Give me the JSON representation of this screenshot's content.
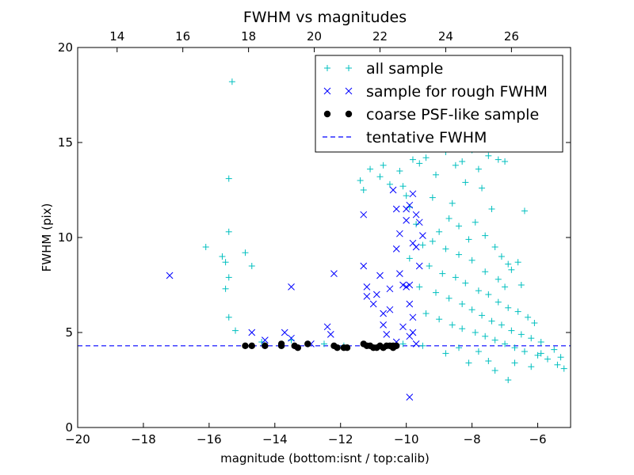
{
  "chart_data": {
    "type": "scatter",
    "title": "FWHM vs magnitudes",
    "xlabel": "magnitude (bottom:isnt / top:calib)",
    "ylabel": "FWHM (pix)",
    "xlim": [
      -20,
      -5
    ],
    "ylim": [
      0,
      20
    ],
    "xticks": [
      -20,
      -18,
      -16,
      -14,
      -12,
      -10,
      -8,
      -6
    ],
    "xtick_labels": [
      "−20",
      "−18",
      "−16",
      "−14",
      "−12",
      "−10",
      "−8",
      "−6"
    ],
    "yticks": [
      0,
      5,
      10,
      15,
      20
    ],
    "ytick_labels": [
      "0",
      "5",
      "10",
      "15",
      "20"
    ],
    "top_axis": {
      "offset": 32.8,
      "ticks": [
        14,
        16,
        18,
        20,
        22,
        24,
        26
      ],
      "tick_labels": [
        "14",
        "16",
        "18",
        "20",
        "22",
        "24",
        "26"
      ]
    },
    "grid": false,
    "legend_position": "top-right",
    "colors": {
      "all_sample": "#00bfbf",
      "rough_sample": "#0000ff",
      "psf_sample": "#000000",
      "tentative": "#0000ff"
    },
    "series": [
      {
        "name": "all sample",
        "marker": "+",
        "points": [
          [
            -15.3,
            18.2
          ],
          [
            -15.4,
            13.1
          ],
          [
            -15.4,
            10.3
          ],
          [
            -16.1,
            9.5
          ],
          [
            -15.6,
            9.0
          ],
          [
            -15.5,
            8.7
          ],
          [
            -15.4,
            7.9
          ],
          [
            -15.5,
            7.3
          ],
          [
            -15.4,
            5.8
          ],
          [
            -15.2,
            5.1
          ],
          [
            -14.9,
            9.2
          ],
          [
            -14.7,
            8.5
          ],
          [
            -14.4,
            4.5
          ],
          [
            -13.5,
            4.6
          ],
          [
            -12.5,
            4.4
          ],
          [
            -11.9,
            4.3
          ],
          [
            -11.4,
            13.0
          ],
          [
            -11.3,
            12.5
          ],
          [
            -11.1,
            13.6
          ],
          [
            -10.8,
            13.2
          ],
          [
            -10.7,
            13.8
          ],
          [
            -10.5,
            12.8
          ],
          [
            -10.2,
            13.5
          ],
          [
            -10.0,
            12.2
          ],
          [
            -9.8,
            14.1
          ],
          [
            -9.6,
            13.9
          ],
          [
            -9.4,
            14.2
          ],
          [
            -9.1,
            13.3
          ],
          [
            -8.8,
            14.5
          ],
          [
            -8.5,
            13.8
          ],
          [
            -8.3,
            14.0
          ],
          [
            -8.0,
            14.6
          ],
          [
            -7.8,
            13.6
          ],
          [
            -7.5,
            14.3
          ],
          [
            -7.2,
            14.1
          ],
          [
            -7.0,
            14.0
          ],
          [
            -8.2,
            12.9
          ],
          [
            -7.7,
            12.6
          ],
          [
            -9.2,
            12.1
          ],
          [
            -8.6,
            11.8
          ],
          [
            -7.4,
            11.5
          ],
          [
            -6.4,
            11.4
          ],
          [
            -6.6,
            8.7
          ],
          [
            -6.5,
            7.5
          ],
          [
            -6.8,
            8.3
          ],
          [
            -9.9,
            8.9
          ],
          [
            -9.5,
            9.6
          ],
          [
            -9.0,
            10.3
          ],
          [
            -8.7,
            11.0
          ],
          [
            -8.4,
            10.6
          ],
          [
            -8.1,
            9.9
          ],
          [
            -7.9,
            10.8
          ],
          [
            -7.6,
            10.1
          ],
          [
            -7.3,
            9.5
          ],
          [
            -7.1,
            9.0
          ],
          [
            -6.9,
            8.6
          ],
          [
            -9.3,
            8.5
          ],
          [
            -8.9,
            8.1
          ],
          [
            -8.5,
            7.9
          ],
          [
            -8.2,
            7.6
          ],
          [
            -7.8,
            7.2
          ],
          [
            -7.5,
            7.0
          ],
          [
            -7.2,
            6.6
          ],
          [
            -6.9,
            6.3
          ],
          [
            -6.6,
            6.1
          ],
          [
            -6.3,
            5.8
          ],
          [
            -6.1,
            5.5
          ],
          [
            -9.6,
            7.4
          ],
          [
            -9.1,
            7.1
          ],
          [
            -8.7,
            6.8
          ],
          [
            -8.3,
            6.5
          ],
          [
            -8.0,
            6.2
          ],
          [
            -7.7,
            5.9
          ],
          [
            -7.4,
            5.6
          ],
          [
            -7.1,
            5.4
          ],
          [
            -6.8,
            5.1
          ],
          [
            -6.5,
            4.9
          ],
          [
            -6.2,
            4.7
          ],
          [
            -5.9,
            4.5
          ],
          [
            -9.4,
            6.0
          ],
          [
            -9.0,
            5.7
          ],
          [
            -8.6,
            5.4
          ],
          [
            -8.3,
            5.2
          ],
          [
            -7.9,
            5.0
          ],
          [
            -7.6,
            4.8
          ],
          [
            -7.3,
            4.6
          ],
          [
            -7.0,
            4.4
          ],
          [
            -6.7,
            4.2
          ],
          [
            -6.4,
            4.0
          ],
          [
            -6.0,
            3.8
          ],
          [
            -5.7,
            3.6
          ],
          [
            -5.4,
            3.3
          ],
          [
            -5.2,
            3.1
          ],
          [
            -6.9,
            2.5
          ],
          [
            -7.3,
            3.0
          ],
          [
            -8.1,
            3.4
          ],
          [
            -8.8,
            3.9
          ],
          [
            -9.5,
            4.3
          ],
          [
            -10.1,
            4.4
          ],
          [
            -9.7,
            10.7
          ],
          [
            -9.9,
            11.6
          ],
          [
            -10.1,
            12.7
          ],
          [
            -8.0,
            8.8
          ],
          [
            -7.6,
            8.2
          ],
          [
            -7.2,
            7.8
          ],
          [
            -7.0,
            7.4
          ],
          [
            -8.4,
            9.1
          ],
          [
            -8.8,
            9.4
          ],
          [
            -9.2,
            9.8
          ],
          [
            -7.5,
            3.5
          ],
          [
            -6.2,
            3.2
          ],
          [
            -5.9,
            3.9
          ],
          [
            -5.5,
            4.1
          ],
          [
            -5.3,
            3.7
          ],
          [
            -6.7,
            3.4
          ],
          [
            -7.8,
            4.0
          ],
          [
            -8.4,
            4.2
          ]
        ]
      },
      {
        "name": "sample for rough FWHM",
        "marker": "x",
        "points": [
          [
            -17.2,
            8.0
          ],
          [
            -13.5,
            7.4
          ],
          [
            -14.7,
            5.0
          ],
          [
            -14.3,
            4.6
          ],
          [
            -13.7,
            5.0
          ],
          [
            -13.5,
            4.7
          ],
          [
            -12.9,
            4.4
          ],
          [
            -12.4,
            5.3
          ],
          [
            -12.3,
            4.9
          ],
          [
            -12.2,
            8.1
          ],
          [
            -11.3,
            11.2
          ],
          [
            -11.3,
            8.5
          ],
          [
            -11.2,
            7.4
          ],
          [
            -11.2,
            6.9
          ],
          [
            -11.0,
            6.5
          ],
          [
            -10.9,
            7.0
          ],
          [
            -10.8,
            8.0
          ],
          [
            -10.7,
            6.0
          ],
          [
            -10.7,
            5.4
          ],
          [
            -10.6,
            4.9
          ],
          [
            -10.5,
            6.2
          ],
          [
            -10.5,
            7.3
          ],
          [
            -10.4,
            12.5
          ],
          [
            -10.3,
            11.5
          ],
          [
            -10.2,
            10.2
          ],
          [
            -10.3,
            9.4
          ],
          [
            -10.2,
            8.1
          ],
          [
            -10.1,
            7.5
          ],
          [
            -10.0,
            11.5
          ],
          [
            -10.0,
            10.9
          ],
          [
            -9.9,
            11.7
          ],
          [
            -9.8,
            12.3
          ],
          [
            -9.8,
            9.7
          ],
          [
            -9.7,
            9.5
          ],
          [
            -9.7,
            11.2
          ],
          [
            -9.6,
            10.8
          ],
          [
            -9.6,
            8.5
          ],
          [
            -9.5,
            10.1
          ],
          [
            -9.9,
            7.5
          ],
          [
            -10.0,
            7.4
          ],
          [
            -9.9,
            6.5
          ],
          [
            -9.8,
            5.8
          ],
          [
            -10.1,
            5.3
          ],
          [
            -9.8,
            5.0
          ],
          [
            -9.9,
            4.8
          ],
          [
            -10.3,
            4.5
          ],
          [
            -9.7,
            4.4
          ],
          [
            -9.9,
            1.6
          ]
        ]
      },
      {
        "name": "coarse PSF-like sample",
        "marker": "o",
        "points": [
          [
            -14.9,
            4.3
          ],
          [
            -14.7,
            4.3
          ],
          [
            -14.3,
            4.3
          ],
          [
            -13.8,
            4.3
          ],
          [
            -13.8,
            4.4
          ],
          [
            -13.4,
            4.3
          ],
          [
            -13.3,
            4.2
          ],
          [
            -13.0,
            4.4
          ],
          [
            -12.2,
            4.3
          ],
          [
            -12.1,
            4.2
          ],
          [
            -11.9,
            4.2
          ],
          [
            -11.8,
            4.2
          ],
          [
            -11.3,
            4.4
          ],
          [
            -11.2,
            4.3
          ],
          [
            -11.1,
            4.3
          ],
          [
            -11.0,
            4.2
          ],
          [
            -10.9,
            4.2
          ],
          [
            -10.8,
            4.3
          ],
          [
            -10.7,
            4.2
          ],
          [
            -10.6,
            4.3
          ],
          [
            -10.5,
            4.3
          ],
          [
            -10.4,
            4.3
          ],
          [
            -10.3,
            4.3
          ],
          [
            -10.4,
            4.2
          ]
        ]
      },
      {
        "name": "tentative FWHM",
        "style": "dashed",
        "y": 4.3
      }
    ]
  }
}
